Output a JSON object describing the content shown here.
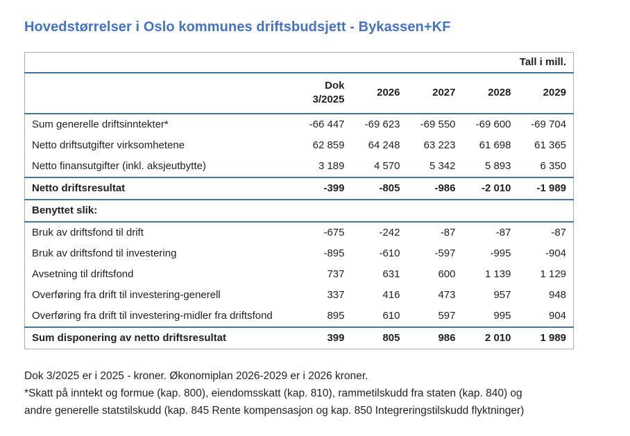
{
  "title": "Hovedstørrelser i Oslo kommunes driftsbudsjett - Bykassen+KF",
  "table": {
    "units_label": "Tall i mill.",
    "columns": [
      "Dok 3/2025",
      "2026",
      "2027",
      "2028",
      "2029"
    ],
    "rows": [
      {
        "label": "Sum generelle driftsinntekter*",
        "values": [
          "-66 447",
          "-69 623",
          "-69 550",
          "-69 600",
          "-69 704"
        ]
      },
      {
        "label": "Netto driftsutgifter virksomhetene",
        "values": [
          "62 859",
          "64 248",
          "63 223",
          "61 698",
          "61 365"
        ]
      },
      {
        "label": "Netto finansutgifter (inkl. aksjeutbytte)",
        "values": [
          "3 189",
          "4 570",
          "5 342",
          "5 893",
          "6 350"
        ]
      },
      {
        "label": "Netto driftsresultat",
        "values": [
          "-399",
          "-805",
          "-986",
          "-2 010",
          "-1 989"
        ]
      },
      {
        "label": "Benyttet slik:",
        "values": [
          "",
          "",
          "",
          "",
          ""
        ]
      },
      {
        "label": "Bruk av driftsfond til drift",
        "values": [
          "-675",
          "-242",
          "-87",
          "-87",
          "-87"
        ]
      },
      {
        "label": "Bruk av driftsfond til investering",
        "values": [
          "-895",
          "-610",
          "-597",
          "-995",
          "-904"
        ]
      },
      {
        "label": "Avsetning til driftsfond",
        "values": [
          "737",
          "631",
          "600",
          "1 139",
          "1 129"
        ]
      },
      {
        "label": "Overføring fra drift til investering-generell",
        "values": [
          "337",
          "416",
          "473",
          "957",
          "948"
        ]
      },
      {
        "label": "Overføring fra drift til investering-midler fra driftsfond",
        "values": [
          "895",
          "610",
          "597",
          "995",
          "904"
        ]
      },
      {
        "label": "Sum disponering av netto driftsresultat",
        "values": [
          "399",
          "805",
          "986",
          "2 010",
          "1 989"
        ]
      }
    ]
  },
  "footnotes": [
    "Dok 3/2025 er i 2025 - kroner. Økonomiplan 2026-2029 er i 2026 kroner.",
    "*Skatt på inntekt og formue (kap. 800), eiendomsskatt (kap. 810), rammetilskudd fra staten (kap. 840) og",
    "andre generelle statstilskudd (kap. 845 Rente kompensasjon og kap. 850 Integreringstilskudd flyktninger)"
  ],
  "colors": {
    "title_blue": "#4472C4",
    "rule_blue": "#41719C",
    "outer_border_gray": "#ABABAB",
    "text": "#1F1F1F"
  }
}
